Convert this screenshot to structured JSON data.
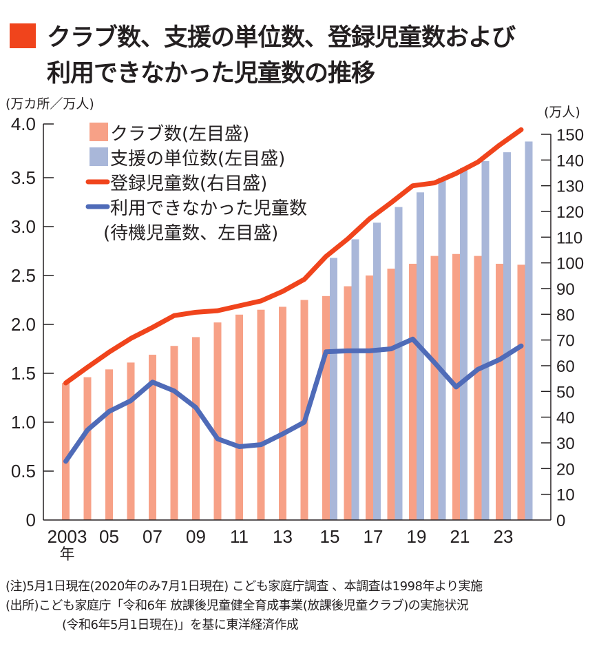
{
  "title": {
    "line1": "クラブ数、支援の単位数、登録児童数および",
    "line2": "利用できなかった児童数の推移",
    "marker_color": "#f0441c"
  },
  "units": {
    "left": "(万カ所／万人)",
    "right": "(万人)"
  },
  "notes": {
    "note": "(注)5月1日現在(2020年のみ7月1日現在) こども家庭庁調査 、本調査は1998年より実施",
    "source_line1": "(出所)こども家庭庁「令和6年 放課後児童健全育成事業(放課後児童クラブ)の実施状況",
    "source_line2": "(令和6年5月1日現在)」を基に東洋経済作成"
  },
  "chart_data": {
    "type": "bar",
    "title": "クラブ数、支援の単位数、登録児童数および利用できなかった児童数の推移",
    "xlabel": "年",
    "ylabel": "(万カ所／万人)",
    "ylabel_right": "(万人)",
    "ylim": [
      0,
      4.0
    ],
    "ylim_right": [
      0,
      150
    ],
    "yticks": [
      "0",
      "0.5",
      "1.0",
      "1.5",
      "2.0",
      "2.5",
      "3.0",
      "3.5",
      "4.0"
    ],
    "yticks_right": [
      "0",
      "10",
      "20",
      "30",
      "40",
      "50",
      "60",
      "70",
      "80",
      "90",
      "100",
      "110",
      "120",
      "130",
      "140",
      "150"
    ],
    "categories": [
      "2003",
      "2004",
      "2005",
      "2006",
      "2007",
      "2008",
      "2009",
      "2010",
      "2011",
      "2012",
      "2013",
      "2014",
      "2015",
      "2016",
      "2017",
      "2018",
      "2019",
      "2020",
      "2021",
      "2022",
      "2023",
      "2024"
    ],
    "xtick_labels": [
      {
        "year": "2003",
        "label": "2003",
        "sub": "年"
      },
      {
        "year": "2005",
        "label": "05"
      },
      {
        "year": "2007",
        "label": "07"
      },
      {
        "year": "2009",
        "label": "09"
      },
      {
        "year": "2011",
        "label": "11"
      },
      {
        "year": "2013",
        "label": "13"
      },
      {
        "year": "2015",
        "label": "15"
      },
      {
        "year": "2017",
        "label": "17"
      },
      {
        "year": "2019",
        "label": "19"
      },
      {
        "year": "2021",
        "label": "21"
      },
      {
        "year": "2023",
        "label": "23"
      }
    ],
    "grid": false,
    "legend_position": "top-left",
    "series": [
      {
        "name": "クラブ数(左目盛)",
        "kind": "bar",
        "axis": "left",
        "color": "#f7a187",
        "values": [
          1.4,
          1.46,
          1.54,
          1.61,
          1.69,
          1.78,
          1.87,
          2.02,
          2.1,
          2.15,
          2.18,
          2.25,
          2.29,
          2.39,
          2.5,
          2.57,
          2.62,
          2.7,
          2.72,
          2.7,
          2.62,
          2.61
        ]
      },
      {
        "name": "支援の単位数(左目盛)",
        "kind": "bar",
        "axis": "left",
        "color": "#a9b7d9",
        "values": [
          null,
          null,
          null,
          null,
          null,
          null,
          null,
          null,
          null,
          null,
          null,
          null,
          2.68,
          2.87,
          3.04,
          3.2,
          3.35,
          3.5,
          3.6,
          3.67,
          3.76,
          3.87
        ]
      },
      {
        "name": "登録児童数(右目盛)",
        "kind": "line",
        "axis": "right",
        "color": "#f0441c",
        "values": [
          53.3,
          59.4,
          65.3,
          70.6,
          74.9,
          79.5,
          80.8,
          81.4,
          83.3,
          85.2,
          88.9,
          93.6,
          102.5,
          109.3,
          117.1,
          123.4,
          130.0,
          131.1,
          134.8,
          139.2,
          145.8,
          151.8
        ]
      },
      {
        "name": "利用できなかった児童数",
        "name_line2": "(待機児童数、左目盛)",
        "kind": "line",
        "axis": "left",
        "color": "#4f6bb8",
        "values": [
          0.6,
          0.92,
          1.11,
          1.22,
          1.41,
          1.32,
          1.15,
          0.83,
          0.75,
          0.77,
          0.88,
          1.0,
          1.72,
          1.73,
          1.73,
          1.75,
          1.85,
          1.61,
          1.36,
          1.54,
          1.64,
          1.78
        ]
      }
    ]
  }
}
